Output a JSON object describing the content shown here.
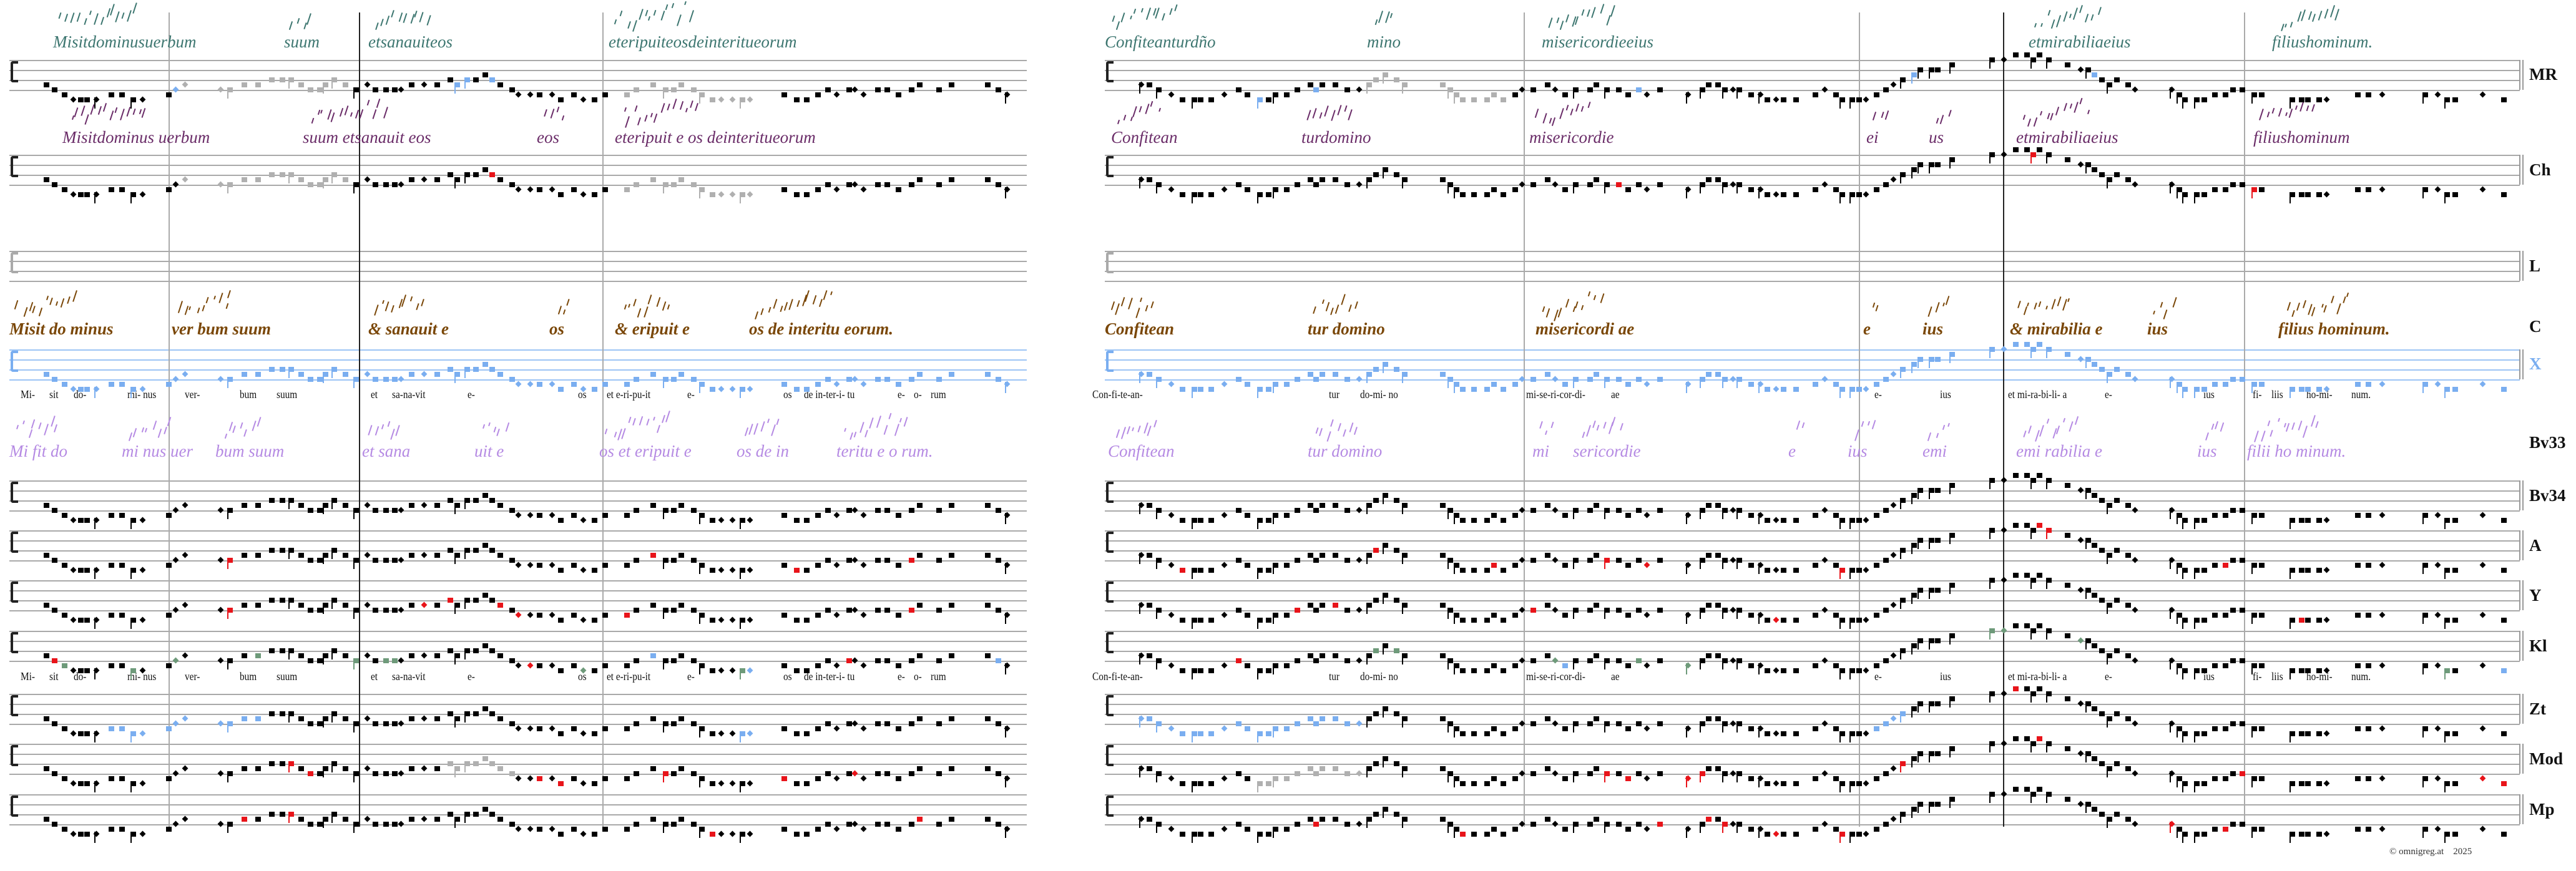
{
  "rows": [
    {
      "label": "MR"
    },
    {
      "label": "Ch"
    },
    {
      "label": "L"
    },
    {
      "label": "C"
    },
    {
      "label": "X"
    },
    {
      "label": "Bv33"
    },
    {
      "label": "Bv34"
    },
    {
      "label": "A"
    },
    {
      "label": "Y"
    },
    {
      "label": "Kl"
    },
    {
      "label": "Zt"
    },
    {
      "label": "Mod"
    },
    {
      "label": "Mp"
    }
  ],
  "lyrics": [
    "Mi-",
    "sit",
    "do-",
    "mi- nus",
    "ver-",
    "bum",
    "suum",
    "et",
    "sa-na-vit",
    "e-",
    "os",
    "et e-ri-pu-it",
    "e-",
    "os",
    "de in-ter-i- tu",
    "e-",
    "o-",
    "rum",
    "Con-fi-te-an-",
    "tur",
    "do-mi- no",
    "mi-se-ri-cor-di-",
    "ae",
    "e-",
    "ius",
    "et mi-ra-bi-li- a",
    "e-",
    "ius",
    "fi-",
    "liis",
    "ho-mi-",
    "num."
  ],
  "manuscripts": {
    "MR": [
      "Misitdominusuerbum",
      "suum",
      "etsanauiteos",
      "eteripuiteosdeinteritueorum",
      "Confiteanturdño",
      "mino",
      "misericordieeius",
      "etmirabiliaeius",
      "filiushominum."
    ],
    "Ch": [
      "Misitdominus uerbum",
      "suum etsanauit eos",
      "eos",
      "eteripuit e os deinteritueorum",
      "Confitean",
      "turdomino",
      "misericordie",
      "ei",
      "us",
      "etmirabiliaeius",
      "filiushominum"
    ],
    "C": [
      "Misit do minus",
      "ver bum suum",
      "& sanauit e",
      "os",
      "& eripuit e",
      "os de interitu eorum.",
      "Confitean",
      "tur domino",
      "misericordi ae",
      "e",
      "ius",
      "& mirabilia e",
      "ius",
      "filius hominum."
    ],
    "Bv33": [
      "Mi fit do",
      "mi nus uer",
      "bum suum",
      "et sana",
      "uit e",
      "os et eripuit e",
      "os de in",
      "teritu e o rum.",
      "Confitean",
      "tur domino",
      "mi",
      "sericordie",
      "e",
      "ius",
      "emi",
      "emi rabilia e",
      "ius",
      "filii ho minum."
    ]
  },
  "footer": {
    "copyright": "©  omnigreg.at",
    "year": "2025"
  },
  "colors": {
    "red": "#e8141a",
    "blue": "#7aaef0",
    "green": "#6e9a7a",
    "gray": "#b0b0b0",
    "mr": "#3d7670",
    "ch": "#6a2c68",
    "c": "#7a4708",
    "bv33": "#b58ae3"
  }
}
